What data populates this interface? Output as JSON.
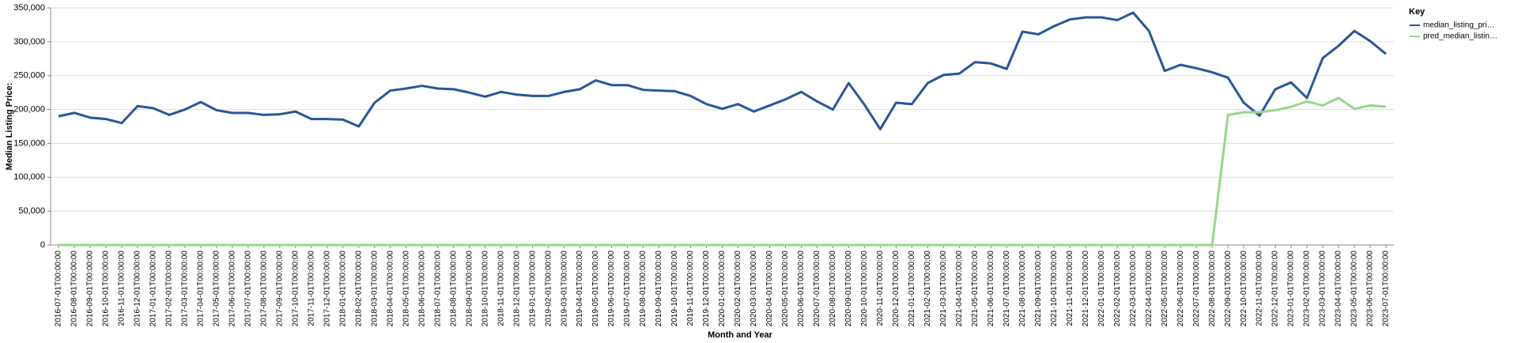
{
  "chart_data": {
    "type": "line",
    "x_label": "Month and Year",
    "y_label": "Median Listing Price:",
    "legend_title": "Key",
    "categories": [
      "2016-07-01T00:00:00",
      "2016-08-01T00:00:00",
      "2016-09-01T00:00:00",
      "2016-10-01T00:00:00",
      "2016-11-01T00:00:00",
      "2016-12-01T00:00:00",
      "2017-01-01T00:00:00",
      "2017-02-01T00:00:00",
      "2017-03-01T00:00:00",
      "2017-04-01T00:00:00",
      "2017-05-01T00:00:00",
      "2017-06-01T00:00:00",
      "2017-07-01T00:00:00",
      "2017-08-01T00:00:00",
      "2017-09-01T00:00:00",
      "2017-10-01T00:00:00",
      "2017-11-01T00:00:00",
      "2017-12-01T00:00:00",
      "2018-01-01T00:00:00",
      "2018-02-01T00:00:00",
      "2018-03-01T00:00:00",
      "2018-04-01T00:00:00",
      "2018-05-01T00:00:00",
      "2018-06-01T00:00:00",
      "2018-07-01T00:00:00",
      "2018-08-01T00:00:00",
      "2018-09-01T00:00:00",
      "2018-10-01T00:00:00",
      "2018-11-01T00:00:00",
      "2018-12-01T00:00:00",
      "2019-01-01T00:00:00",
      "2019-02-01T00:00:00",
      "2019-03-01T00:00:00",
      "2019-04-01T00:00:00",
      "2019-05-01T00:00:00",
      "2019-06-01T00:00:00",
      "2019-07-01T00:00:00",
      "2019-08-01T00:00:00",
      "2019-09-01T00:00:00",
      "2019-10-01T00:00:00",
      "2019-11-01T00:00:00",
      "2019-12-01T00:00:00",
      "2020-01-01T00:00:00",
      "2020-02-01T00:00:00",
      "2020-03-01T00:00:00",
      "2020-04-01T00:00:00",
      "2020-05-01T00:00:00",
      "2020-06-01T00:00:00",
      "2020-07-01T00:00:00",
      "2020-08-01T00:00:00",
      "2020-09-01T00:00:00",
      "2020-10-01T00:00:00",
      "2020-11-01T00:00:00",
      "2020-12-01T00:00:00",
      "2021-01-01T00:00:00",
      "2021-02-01T00:00:00",
      "2021-03-01T00:00:00",
      "2021-04-01T00:00:00",
      "2021-05-01T00:00:00",
      "2021-06-01T00:00:00",
      "2021-07-01T00:00:00",
      "2021-08-01T00:00:00",
      "2021-09-01T00:00:00",
      "2021-10-01T00:00:00",
      "2021-11-01T00:00:00",
      "2021-12-01T00:00:00",
      "2022-01-01T00:00:00",
      "2022-02-01T00:00:00",
      "2022-03-01T00:00:00",
      "2022-04-01T00:00:00",
      "2022-05-01T00:00:00",
      "2022-06-01T00:00:00",
      "2022-07-01T00:00:00",
      "2022-08-01T00:00:00",
      "2022-09-01T00:00:00",
      "2022-10-01T00:00:00",
      "2022-11-01T00:00:00",
      "2022-12-01T00:00:00",
      "2023-01-01T00:00:00",
      "2023-02-01T00:00:00",
      "2023-03-01T00:00:00",
      "2023-04-01T00:00:00",
      "2023-05-01T00:00:00",
      "2023-06-01T00:00:00",
      "2023-07-01T00:00:00"
    ],
    "series": [
      {
        "name": "median_listing_pri…",
        "color": "#2a5599",
        "values": [
          190000,
          195000,
          188000,
          186000,
          180000,
          205000,
          202000,
          192000,
          200000,
          211000,
          199000,
          195000,
          195000,
          192000,
          193000,
          197000,
          186000,
          186000,
          185000,
          175000,
          210000,
          228000,
          231000,
          235000,
          231000,
          230000,
          225000,
          219000,
          226000,
          222000,
          220000,
          220000,
          226000,
          230000,
          243000,
          236000,
          236000,
          229000,
          228000,
          227000,
          220000,
          208000,
          201000,
          208000,
          197000,
          206000,
          215000,
          226000,
          212000,
          200000,
          239000,
          207000,
          171000,
          210000,
          208000,
          239000,
          251000,
          253000,
          270000,
          268000,
          260000,
          315000,
          311000,
          323000,
          333000,
          336000,
          336000,
          332000,
          343000,
          316000,
          257000,
          266000,
          261000,
          255000,
          247000,
          210000,
          191000,
          230000,
          240000,
          217000,
          276000,
          294000,
          316000,
          301000,
          282000
        ]
      },
      {
        "name": "pred_median_listin…",
        "color": "#9ad58f",
        "values": [
          0,
          0,
          0,
          0,
          0,
          0,
          0,
          0,
          0,
          0,
          0,
          0,
          0,
          0,
          0,
          0,
          0,
          0,
          0,
          0,
          0,
          0,
          0,
          0,
          0,
          0,
          0,
          0,
          0,
          0,
          0,
          0,
          0,
          0,
          0,
          0,
          0,
          0,
          0,
          0,
          0,
          0,
          0,
          0,
          0,
          0,
          0,
          0,
          0,
          0,
          0,
          0,
          0,
          0,
          0,
          0,
          0,
          0,
          0,
          0,
          0,
          0,
          0,
          0,
          0,
          0,
          0,
          0,
          0,
          0,
          0,
          0,
          0,
          0,
          192000,
          196000,
          196000,
          199000,
          204000,
          212000,
          206000,
          217000,
          201000,
          206000,
          204000
        ]
      }
    ],
    "ylim": [
      0,
      350000
    ],
    "yticks": [
      0,
      {
        "value": 50000,
        "label": "50,000"
      },
      {
        "value": 100000,
        "label": "100,000"
      },
      {
        "value": 150000,
        "label": "150,000"
      },
      {
        "value": 200000,
        "label": "200,000"
      },
      {
        "value": 250000,
        "label": "250,000"
      },
      {
        "value": 300000,
        "label": "300,000"
      },
      {
        "value": 350000,
        "label": "350,000"
      }
    ],
    "grid": true
  }
}
